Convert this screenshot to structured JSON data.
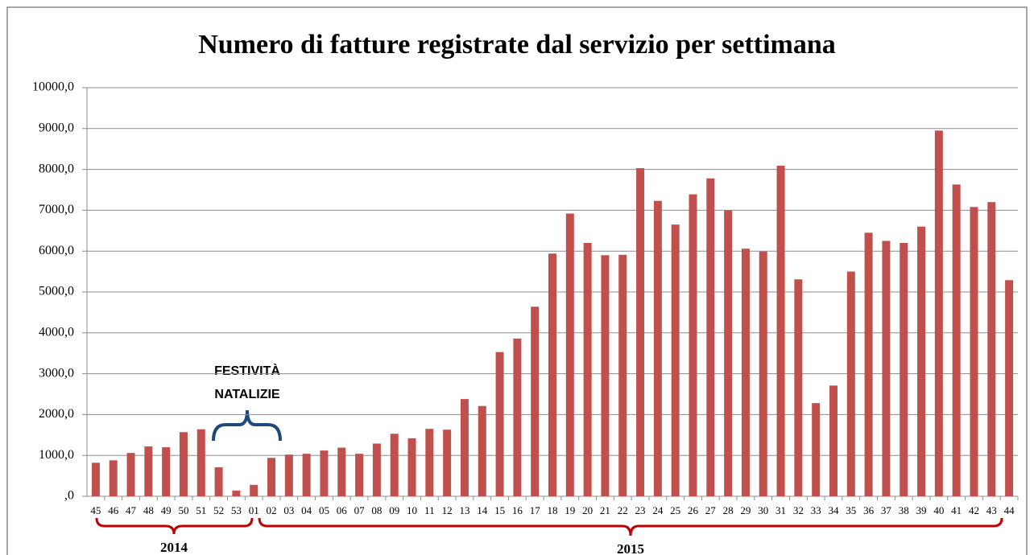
{
  "chart_data": {
    "type": "bar",
    "title": "Numero di fatture registrate dal servizio per settimana",
    "categories": [
      "45",
      "46",
      "47",
      "48",
      "49",
      "50",
      "51",
      "52",
      "53",
      "01",
      "02",
      "03",
      "04",
      "05",
      "06",
      "07",
      "08",
      "09",
      "10",
      "11",
      "12",
      "13",
      "14",
      "15",
      "16",
      "17",
      "18",
      "19",
      "20",
      "21",
      "22",
      "23",
      "24",
      "25",
      "26",
      "27",
      "28",
      "29",
      "30",
      "31",
      "32",
      "33",
      "34",
      "35",
      "36",
      "37",
      "38",
      "39",
      "40",
      "41",
      "42",
      "43",
      "44"
    ],
    "values": [
      820,
      880,
      1060,
      1220,
      1200,
      1570,
      1640,
      710,
      140,
      280,
      940,
      1020,
      1040,
      1120,
      1190,
      1040,
      1290,
      1530,
      1420,
      1650,
      1630,
      2380,
      2210,
      3530,
      3860,
      4640,
      5940,
      6920,
      6200,
      5900,
      5910,
      8030,
      7230,
      6650,
      7390,
      7780,
      7000,
      6060,
      5990,
      8090,
      5310,
      2280,
      2710,
      5500,
      6450,
      6250,
      6200,
      6600,
      8950,
      7630,
      7080,
      7200,
      5290
    ],
    "color": "#c0504d",
    "ylim": [
      0,
      10000
    ],
    "yticks": [
      {
        "value": 0,
        "label": ",0"
      },
      {
        "value": 1000,
        "label": "1000,0"
      },
      {
        "value": 2000,
        "label": "2000,0"
      },
      {
        "value": 3000,
        "label": "3000,0"
      },
      {
        "value": 4000,
        "label": "4000,0"
      },
      {
        "value": 5000,
        "label": "5000,0"
      },
      {
        "value": 6000,
        "label": "6000,0"
      },
      {
        "value": 7000,
        "label": "7000,0"
      },
      {
        "value": 8000,
        "label": "8000,0"
      },
      {
        "value": 9000,
        "label": "9000,0"
      },
      {
        "value": 10000,
        "label": "10000,0"
      }
    ],
    "grid": true,
    "annotations": [
      "FESTIVITÀ",
      "NATALIZIE",
      "2014",
      "2015"
    ]
  }
}
